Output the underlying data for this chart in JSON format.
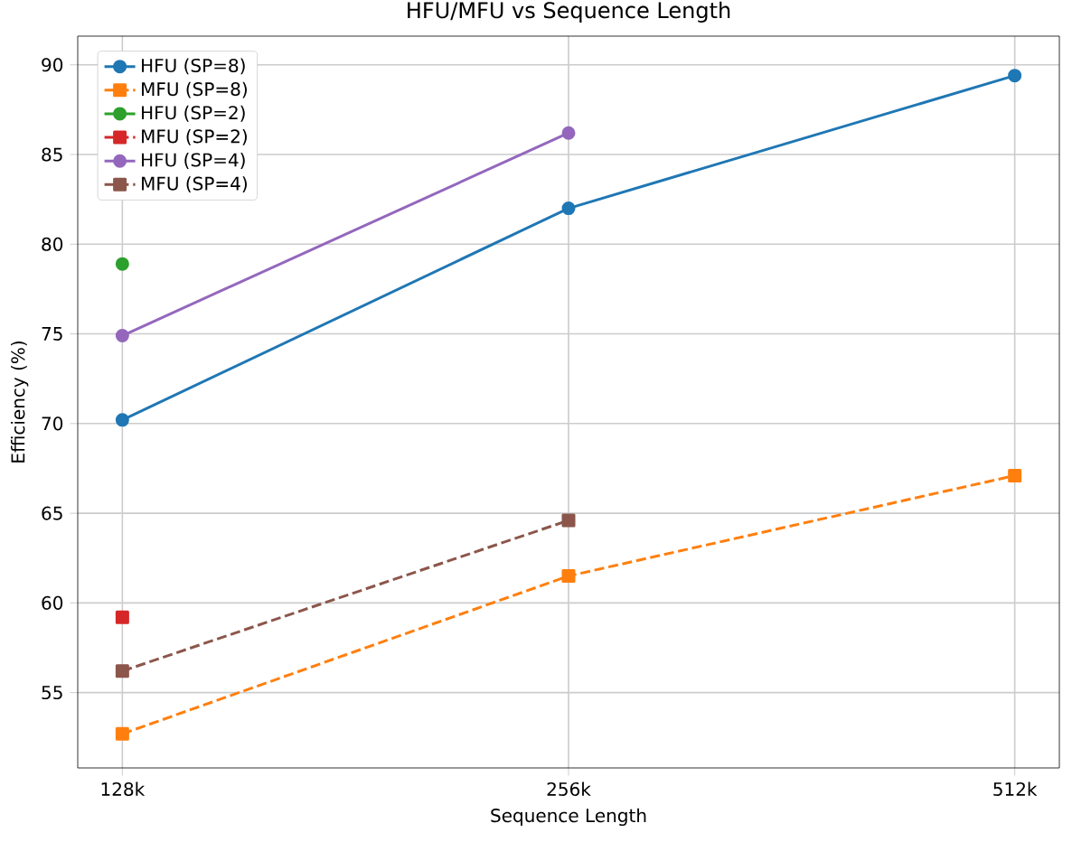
{
  "chart_data": {
    "type": "line",
    "title": "HFU/MFU vs Sequence Length",
    "xlabel": "Sequence Length",
    "ylabel": "Efficiency (%)",
    "categories": [
      "128k",
      "256k",
      "512k"
    ],
    "series": [
      {
        "name": "HFU (SP=8)",
        "color": "#1f77b4",
        "marker": "circle",
        "line_style": "solid",
        "values": [
          70.2,
          82.0,
          89.4
        ]
      },
      {
        "name": "MFU (SP=8)",
        "color": "#ff7f0e",
        "marker": "square",
        "line_style": "dashed",
        "values": [
          52.7,
          61.5,
          67.1
        ]
      },
      {
        "name": "HFU (SP=2)",
        "color": "#2ca02c",
        "marker": "circle",
        "line_style": "solid",
        "values": [
          78.9,
          null,
          null
        ]
      },
      {
        "name": "MFU (SP=2)",
        "color": "#d62728",
        "marker": "square",
        "line_style": "dashed",
        "values": [
          59.2,
          null,
          null
        ]
      },
      {
        "name": "HFU (SP=4)",
        "color": "#9467bd",
        "marker": "circle",
        "line_style": "solid",
        "values": [
          74.9,
          86.2,
          null
        ]
      },
      {
        "name": "MFU (SP=4)",
        "color": "#8c564b",
        "marker": "square",
        "line_style": "dashed",
        "values": [
          56.2,
          64.6,
          null
        ]
      }
    ],
    "ylim": [
      50.8,
      91.6
    ],
    "yticks": [
      55,
      60,
      65,
      70,
      75,
      80,
      85,
      90
    ],
    "grid": true,
    "legend": "top left"
  }
}
